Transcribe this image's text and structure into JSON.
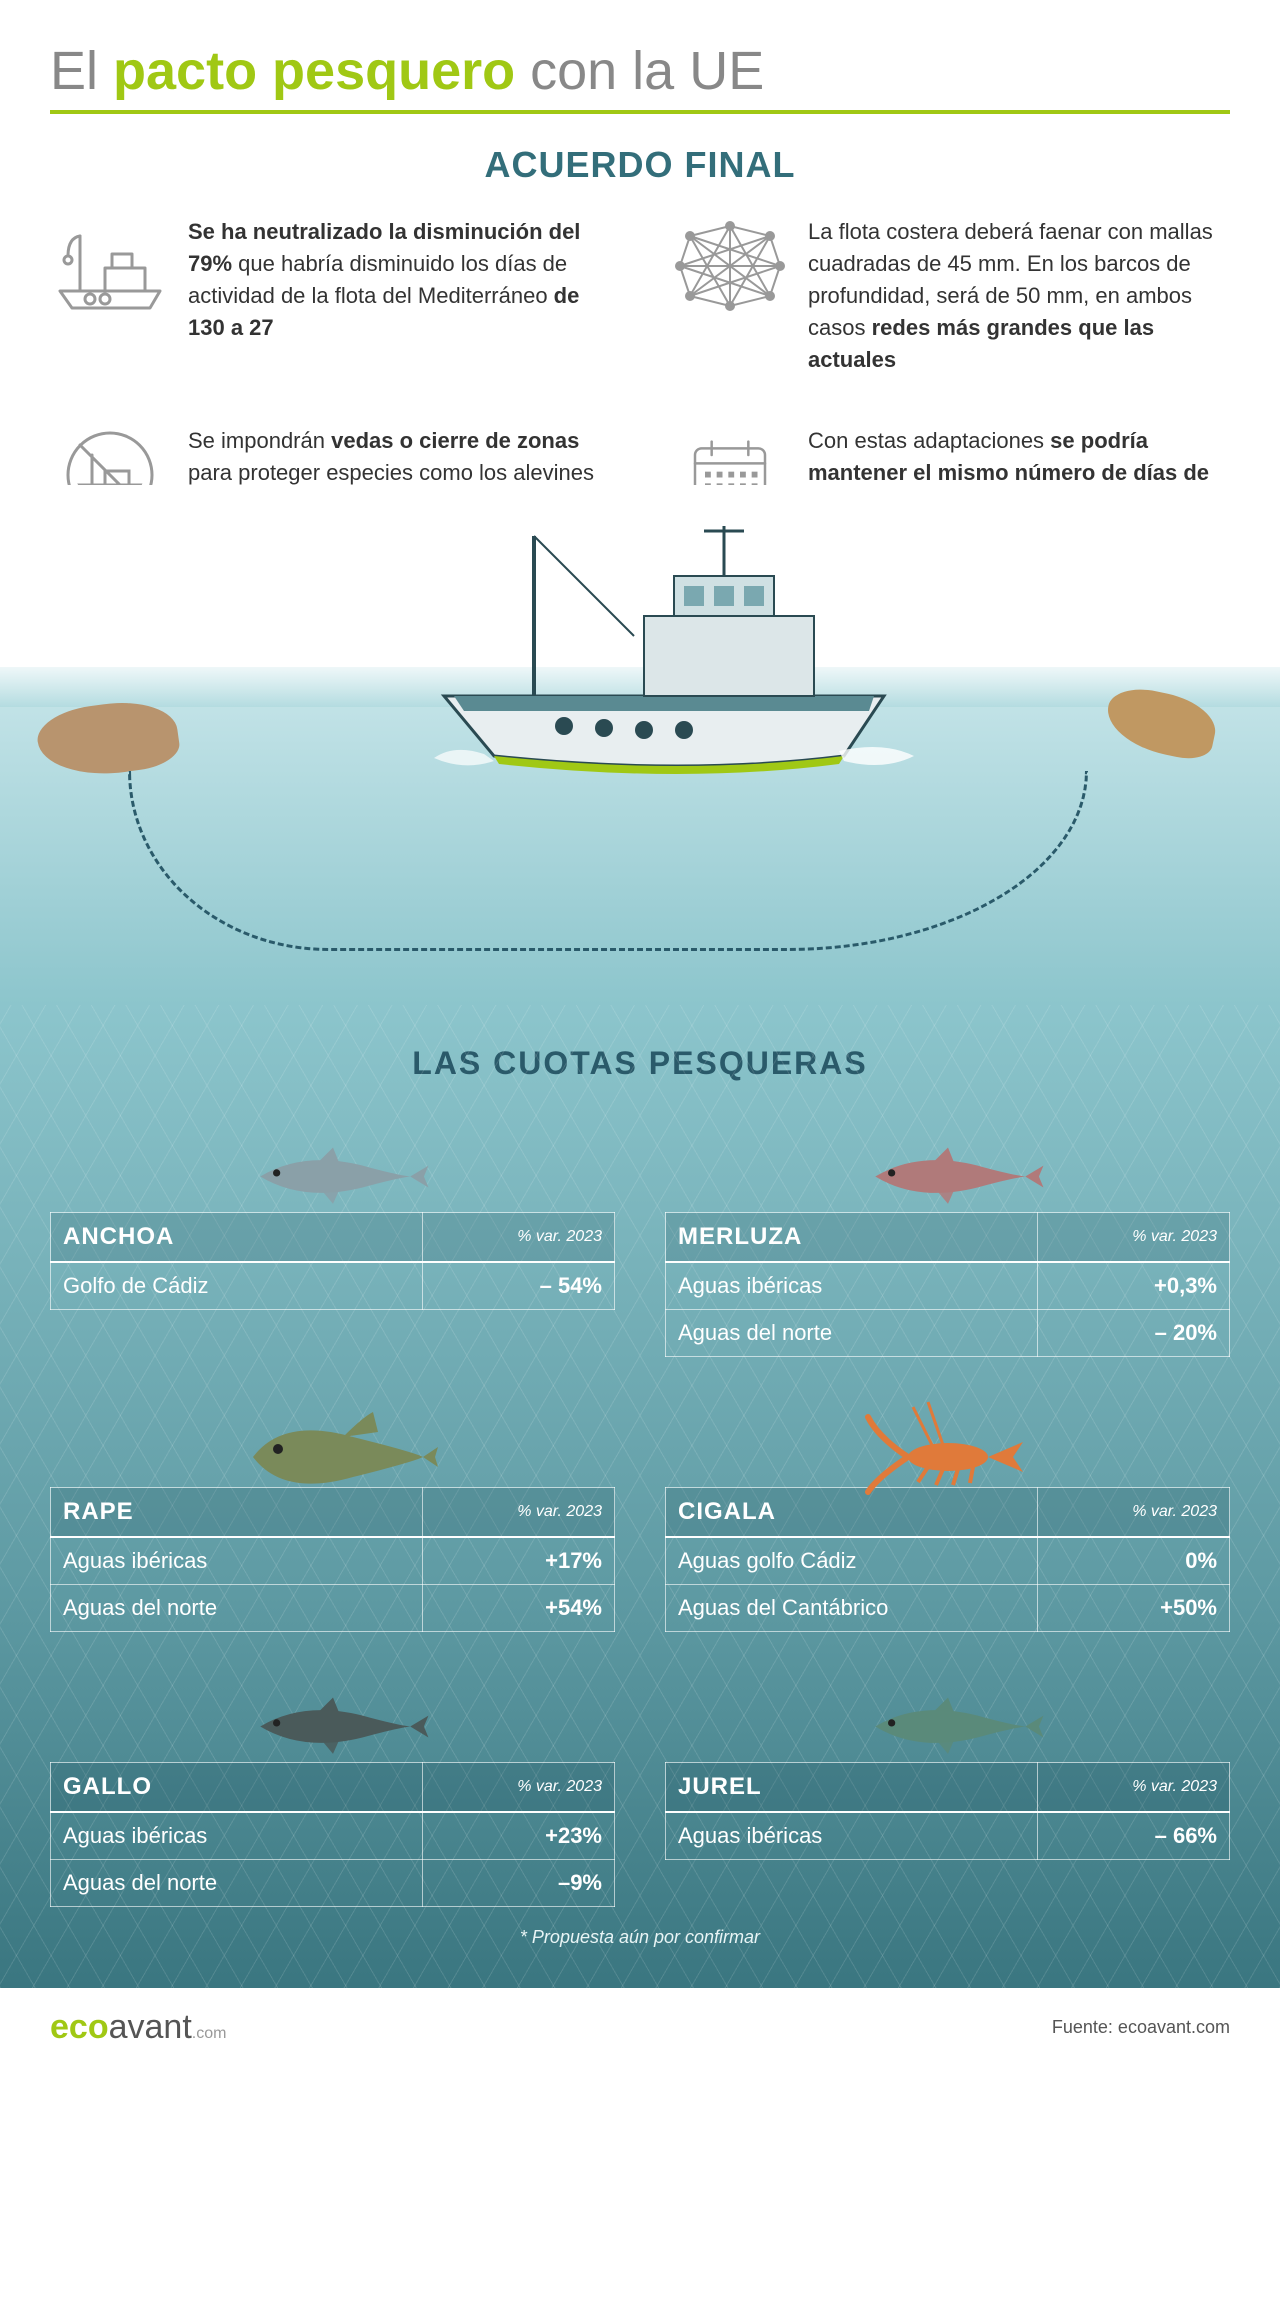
{
  "title": {
    "pre": "El ",
    "highlight": "pacto pesquero",
    "post": " con la UE"
  },
  "subtitle": "ACUERDO FINAL",
  "callouts": [
    {
      "icon": "boat-crane-icon",
      "html": "<b>Se ha neutralizado la disminución del 79%</b> que habría disminuido los días de actividad de la flota del Mediterráneo <b>de 130 a 27</b>"
    },
    {
      "icon": "net-icon",
      "html": "La flota costera deberá faenar con mallas cuadradas de 45 mm. En los barcos de profundidad, será de 50 mm, en ambos casos <b>redes más grandes que las actuales</b>"
    },
    {
      "icon": "no-fishing-icon",
      "html": "Se impondrán <b>vedas o cierre de zonas</b> para proteger especies como los alevines y la gamba roja"
    },
    {
      "icon": "calendar-icon",
      "html": "Con estas adaptaciones <b>se podría mantener el mismo número de días de actividad</b>"
    }
  ],
  "section2_title": "LAS CUOTAS PESQUERAS",
  "var_label": "% var. 2023",
  "quotas": [
    {
      "name": "ANCHOA",
      "fish_color": "#8aa0a8",
      "rows": [
        {
          "region": "Golfo de Cádiz",
          "value": "– 54%"
        }
      ]
    },
    {
      "name": "MERLUZA",
      "fish_color": "#b07a7a",
      "rows": [
        {
          "region": "Aguas ibéricas",
          "value": "+0,3%"
        },
        {
          "region": "Aguas del norte",
          "value": "– 20%"
        }
      ]
    },
    {
      "name": "RAPE",
      "fish_color": "#7a8a5a",
      "rows": [
        {
          "region": "Aguas ibéricas",
          "value": "+17%"
        },
        {
          "region": "Aguas del norte",
          "value": "+54%"
        }
      ]
    },
    {
      "name": "CIGALA",
      "fish_color": "#e07a3a",
      "rows": [
        {
          "region": "Aguas golfo Cádiz",
          "value": "0%"
        },
        {
          "region": "Aguas del Cantábrico",
          "value": "+50%"
        }
      ]
    },
    {
      "name": "GALLO",
      "fish_color": "#4a5a5a",
      "rows": [
        {
          "region": "Aguas ibéricas",
          "value": "+23%"
        },
        {
          "region": "Aguas del norte",
          "value": "–9%"
        }
      ]
    },
    {
      "name": "JUREL",
      "fish_color": "#5a8a7a",
      "rows": [
        {
          "region": "Aguas ibéricas",
          "value": "– 66%"
        }
      ]
    }
  ],
  "footnote": "* Propuesta aún por confirmar",
  "footer": {
    "logo_eco": "eco",
    "logo_avant": "avant",
    "logo_dom": ".com",
    "source": "Fuente:  ecoavant.com"
  },
  "colors": {
    "accent": "#a0c814",
    "teal_dark": "#336e7a",
    "text": "#333333",
    "water_top": "#c8e6ea",
    "water_mid": "#8cc5cc",
    "water_deep": "#3a7680",
    "icon_stroke": "#999999"
  }
}
